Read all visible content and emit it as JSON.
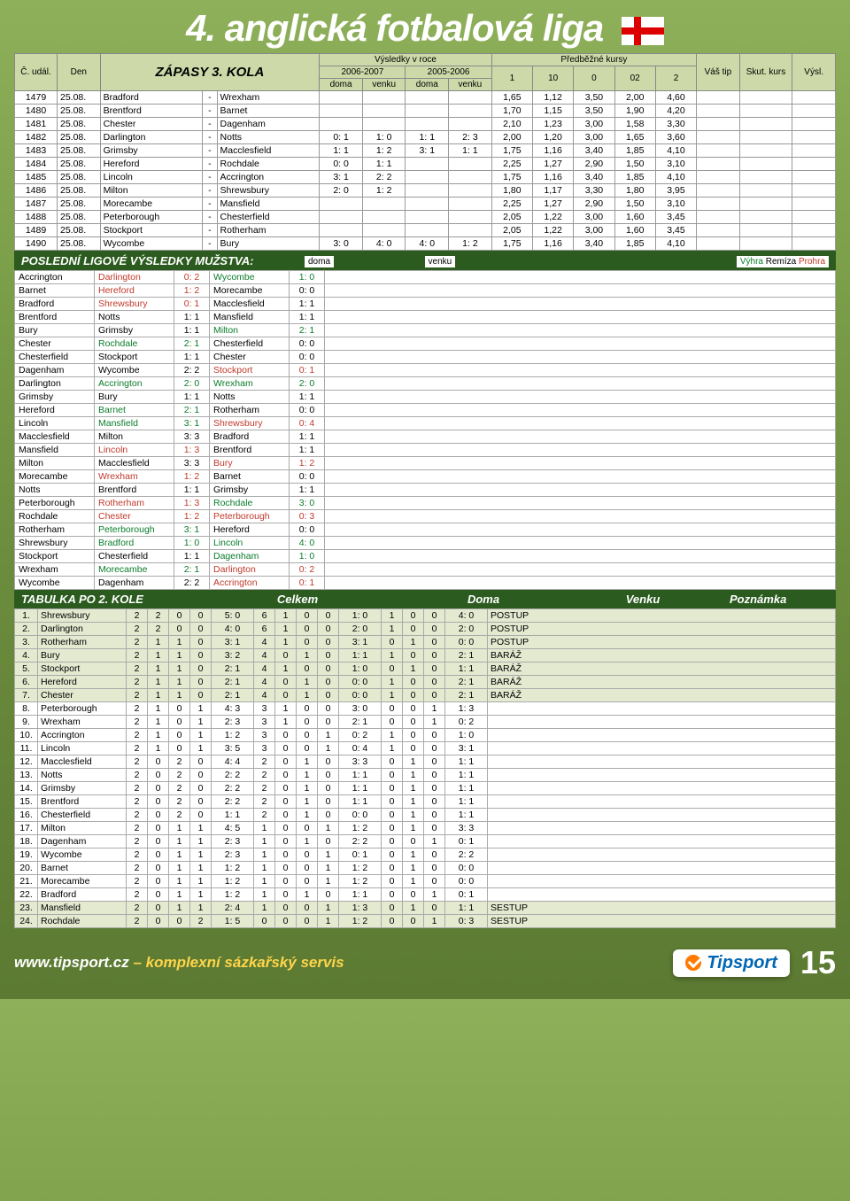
{
  "title": "4. anglická fotbalová liga",
  "matches_header": {
    "c": "Č. udál.",
    "den": "Den",
    "zapasy": "ZÁPASY 3. KOLA",
    "vysledky": "Výsledky v roce",
    "y1": "2006-2007",
    "y2": "2005-2006",
    "doma": "doma",
    "venku": "venku",
    "kursy": "Předběžné kursy",
    "k1": "1",
    "k10": "10",
    "k0": "0",
    "k02": "02",
    "k2": "2",
    "tip": "Váš tip",
    "skut": "Skut. kurs",
    "vysl": "Výsl."
  },
  "matches": [
    {
      "id": "1479",
      "d": "25.08.",
      "h": "Bradford",
      "a": "Wrexham",
      "r": [
        "",
        "",
        "",
        ""
      ],
      "o": [
        "1,65",
        "1,12",
        "3,50",
        "2,00",
        "4,60"
      ]
    },
    {
      "id": "1480",
      "d": "25.08.",
      "h": "Brentford",
      "a": "Barnet",
      "r": [
        "",
        "",
        "",
        ""
      ],
      "o": [
        "1,70",
        "1,15",
        "3,50",
        "1,90",
        "4,20"
      ]
    },
    {
      "id": "1481",
      "d": "25.08.",
      "h": "Chester",
      "a": "Dagenham",
      "r": [
        "",
        "",
        "",
        ""
      ],
      "o": [
        "2,10",
        "1,23",
        "3,00",
        "1,58",
        "3,30"
      ]
    },
    {
      "id": "1482",
      "d": "25.08.",
      "h": "Darlington",
      "a": "Notts",
      "r": [
        "0: 1",
        "1: 0",
        "1: 1",
        "2: 3"
      ],
      "o": [
        "2,00",
        "1,20",
        "3,00",
        "1,65",
        "3,60"
      ]
    },
    {
      "id": "1483",
      "d": "25.08.",
      "h": "Grimsby",
      "a": "Macclesfield",
      "r": [
        "1: 1",
        "1: 2",
        "3: 1",
        "1: 1"
      ],
      "o": [
        "1,75",
        "1,16",
        "3,40",
        "1,85",
        "4,10"
      ]
    },
    {
      "id": "1484",
      "d": "25.08.",
      "h": "Hereford",
      "a": "Rochdale",
      "r": [
        "0: 0",
        "1: 1",
        "",
        ""
      ],
      "o": [
        "2,25",
        "1,27",
        "2,90",
        "1,50",
        "3,10"
      ]
    },
    {
      "id": "1485",
      "d": "25.08.",
      "h": "Lincoln",
      "a": "Accrington",
      "r": [
        "3: 1",
        "2: 2",
        "",
        ""
      ],
      "o": [
        "1,75",
        "1,16",
        "3,40",
        "1,85",
        "4,10"
      ]
    },
    {
      "id": "1486",
      "d": "25.08.",
      "h": "Milton",
      "a": "Shrewsbury",
      "r": [
        "2: 0",
        "1: 2",
        "",
        ""
      ],
      "o": [
        "1,80",
        "1,17",
        "3,30",
        "1,80",
        "3,95"
      ]
    },
    {
      "id": "1487",
      "d": "25.08.",
      "h": "Morecambe",
      "a": "Mansfield",
      "r": [
        "",
        "",
        "",
        ""
      ],
      "o": [
        "2,25",
        "1,27",
        "2,90",
        "1,50",
        "3,10"
      ]
    },
    {
      "id": "1488",
      "d": "25.08.",
      "h": "Peterborough",
      "a": "Chesterfield",
      "r": [
        "",
        "",
        "",
        ""
      ],
      "o": [
        "2,05",
        "1,22",
        "3,00",
        "1,60",
        "3,45"
      ]
    },
    {
      "id": "1489",
      "d": "25.08.",
      "h": "Stockport",
      "a": "Rotherham",
      "r": [
        "",
        "",
        "",
        ""
      ],
      "o": [
        "2,05",
        "1,22",
        "3,00",
        "1,60",
        "3,45"
      ]
    },
    {
      "id": "1490",
      "d": "25.08.",
      "h": "Wycombe",
      "a": "Bury",
      "r": [
        "3: 0",
        "4: 0",
        "4: 0",
        "1: 2"
      ],
      "o": [
        "1,75",
        "1,16",
        "3,40",
        "1,85",
        "4,10"
      ]
    }
  ],
  "recent_title": "POSLEDNÍ LIGOVÉ VÝSLEDKY MUŽSTVA:",
  "legend": {
    "doma": "doma",
    "venku": "venku",
    "vyhra": "Výhra",
    "remiza": "Remíza",
    "prohra": "Prohra"
  },
  "recent": [
    {
      "t": "Accrington",
      "o": "Darlington",
      "oc": "red",
      "s": "0: 2",
      "t2": "Wycombe",
      "t2c": "green",
      "s2": "1: 0"
    },
    {
      "t": "Barnet",
      "o": "Hereford",
      "oc": "red",
      "s": "1: 2",
      "t2": "Morecambe",
      "t2c": "",
      "s2": "0: 0"
    },
    {
      "t": "Bradford",
      "o": "Shrewsbury",
      "oc": "red",
      "s": "0: 1",
      "t2": "Macclesfield",
      "t2c": "",
      "s2": "1: 1"
    },
    {
      "t": "Brentford",
      "o": "Notts",
      "oc": "",
      "s": "1: 1",
      "t2": "Mansfield",
      "t2c": "",
      "s2": "1: 1"
    },
    {
      "t": "Bury",
      "o": "Grimsby",
      "oc": "",
      "s": "1: 1",
      "t2": "Milton",
      "t2c": "green",
      "s2": "2: 1"
    },
    {
      "t": "Chester",
      "o": "Rochdale",
      "oc": "green",
      "s": "2: 1",
      "t2": "Chesterfield",
      "t2c": "",
      "s2": "0: 0"
    },
    {
      "t": "Chesterfield",
      "o": "Stockport",
      "oc": "",
      "s": "1: 1",
      "t2": "Chester",
      "t2c": "",
      "s2": "0: 0"
    },
    {
      "t": "Dagenham",
      "o": "Wycombe",
      "oc": "",
      "s": "2: 2",
      "t2": "Stockport",
      "t2c": "red",
      "s2": "0: 1"
    },
    {
      "t": "Darlington",
      "o": "Accrington",
      "oc": "green",
      "s": "2: 0",
      "t2": "Wrexham",
      "t2c": "green",
      "s2": "2: 0"
    },
    {
      "t": "Grimsby",
      "o": "Bury",
      "oc": "",
      "s": "1: 1",
      "t2": "Notts",
      "t2c": "",
      "s2": "1: 1"
    },
    {
      "t": "Hereford",
      "o": "Barnet",
      "oc": "green",
      "s": "2: 1",
      "t2": "Rotherham",
      "t2c": "",
      "s2": "0: 0"
    },
    {
      "t": "Lincoln",
      "o": "Mansfield",
      "oc": "green",
      "s": "3: 1",
      "t2": "Shrewsbury",
      "t2c": "red",
      "s2": "0: 4"
    },
    {
      "t": "Macclesfield",
      "o": "Milton",
      "oc": "",
      "s": "3: 3",
      "t2": "Bradford",
      "t2c": "",
      "s2": "1: 1"
    },
    {
      "t": "Mansfield",
      "o": "Lincoln",
      "oc": "red",
      "s": "1: 3",
      "t2": "Brentford",
      "t2c": "",
      "s2": "1: 1"
    },
    {
      "t": "Milton",
      "o": "Macclesfield",
      "oc": "",
      "s": "3: 3",
      "t2": "Bury",
      "t2c": "red",
      "s2": "1: 2"
    },
    {
      "t": "Morecambe",
      "o": "Wrexham",
      "oc": "red",
      "s": "1: 2",
      "t2": "Barnet",
      "t2c": "",
      "s2": "0: 0"
    },
    {
      "t": "Notts",
      "o": "Brentford",
      "oc": "",
      "s": "1: 1",
      "t2": "Grimsby",
      "t2c": "",
      "s2": "1: 1"
    },
    {
      "t": "Peterborough",
      "o": "Rotherham",
      "oc": "red",
      "s": "1: 3",
      "t2": "Rochdale",
      "t2c": "green",
      "s2": "3: 0"
    },
    {
      "t": "Rochdale",
      "o": "Chester",
      "oc": "red",
      "s": "1: 2",
      "t2": "Peterborough",
      "t2c": "red",
      "s2": "0: 3"
    },
    {
      "t": "Rotherham",
      "o": "Peterborough",
      "oc": "green",
      "s": "3: 1",
      "t2": "Hereford",
      "t2c": "",
      "s2": "0: 0"
    },
    {
      "t": "Shrewsbury",
      "o": "Bradford",
      "oc": "green",
      "s": "1: 0",
      "t2": "Lincoln",
      "t2c": "green",
      "s2": "4: 0"
    },
    {
      "t": "Stockport",
      "o": "Chesterfield",
      "oc": "",
      "s": "1: 1",
      "t2": "Dagenham",
      "t2c": "green",
      "s2": "1: 0"
    },
    {
      "t": "Wrexham",
      "o": "Morecambe",
      "oc": "green",
      "s": "2: 1",
      "t2": "Darlington",
      "t2c": "red",
      "s2": "0: 2"
    },
    {
      "t": "Wycombe",
      "o": "Dagenham",
      "oc": "",
      "s": "2: 2",
      "t2": "Accrington",
      "t2c": "red",
      "s2": "0: 1"
    }
  ],
  "standings_title": "TABULKA PO 2. KOLE",
  "standings_header": {
    "celkem": "Celkem",
    "doma": "Doma",
    "venku": "Venku",
    "pozn": "Poznámka"
  },
  "standings": [
    {
      "p": "1.",
      "t": "Shrewsbury",
      "c": [
        "2",
        "2",
        "0",
        "0",
        "5: 0",
        "6"
      ],
      "d": [
        "1",
        "0",
        "0",
        "1: 0"
      ],
      "v": [
        "1",
        "0",
        "0",
        "4: 0"
      ],
      "n": "POSTUP",
      "shade": true
    },
    {
      "p": "2.",
      "t": "Darlington",
      "c": [
        "2",
        "2",
        "0",
        "0",
        "4: 0",
        "6"
      ],
      "d": [
        "1",
        "0",
        "0",
        "2: 0"
      ],
      "v": [
        "1",
        "0",
        "0",
        "2: 0"
      ],
      "n": "POSTUP",
      "shade": true
    },
    {
      "p": "3.",
      "t": "Rotherham",
      "c": [
        "2",
        "1",
        "1",
        "0",
        "3: 1",
        "4"
      ],
      "d": [
        "1",
        "0",
        "0",
        "3: 1"
      ],
      "v": [
        "0",
        "1",
        "0",
        "0: 0"
      ],
      "n": "POSTUP",
      "shade": true
    },
    {
      "p": "4.",
      "t": "Bury",
      "c": [
        "2",
        "1",
        "1",
        "0",
        "3: 2",
        "4"
      ],
      "d": [
        "0",
        "1",
        "0",
        "1: 1"
      ],
      "v": [
        "1",
        "0",
        "0",
        "2: 1"
      ],
      "n": "BARÁŽ",
      "shade": true
    },
    {
      "p": "5.",
      "t": "Stockport",
      "c": [
        "2",
        "1",
        "1",
        "0",
        "2: 1",
        "4"
      ],
      "d": [
        "1",
        "0",
        "0",
        "1: 0"
      ],
      "v": [
        "0",
        "1",
        "0",
        "1: 1"
      ],
      "n": "BARÁŽ",
      "shade": true
    },
    {
      "p": "6.",
      "t": "Hereford",
      "c": [
        "2",
        "1",
        "1",
        "0",
        "2: 1",
        "4"
      ],
      "d": [
        "0",
        "1",
        "0",
        "0: 0"
      ],
      "v": [
        "1",
        "0",
        "0",
        "2: 1"
      ],
      "n": "BARÁŽ",
      "shade": true
    },
    {
      "p": "7.",
      "t": "Chester",
      "c": [
        "2",
        "1",
        "1",
        "0",
        "2: 1",
        "4"
      ],
      "d": [
        "0",
        "1",
        "0",
        "0: 0"
      ],
      "v": [
        "1",
        "0",
        "0",
        "2: 1"
      ],
      "n": "BARÁŽ",
      "shade": true
    },
    {
      "p": "8.",
      "t": "Peterborough",
      "c": [
        "2",
        "1",
        "0",
        "1",
        "4: 3",
        "3"
      ],
      "d": [
        "1",
        "0",
        "0",
        "3: 0"
      ],
      "v": [
        "0",
        "0",
        "1",
        "1: 3"
      ],
      "n": ""
    },
    {
      "p": "9.",
      "t": "Wrexham",
      "c": [
        "2",
        "1",
        "0",
        "1",
        "2: 3",
        "3"
      ],
      "d": [
        "1",
        "0",
        "0",
        "2: 1"
      ],
      "v": [
        "0",
        "0",
        "1",
        "0: 2"
      ],
      "n": ""
    },
    {
      "p": "10.",
      "t": "Accrington",
      "c": [
        "2",
        "1",
        "0",
        "1",
        "1: 2",
        "3"
      ],
      "d": [
        "0",
        "0",
        "1",
        "0: 2"
      ],
      "v": [
        "1",
        "0",
        "0",
        "1: 0"
      ],
      "n": ""
    },
    {
      "p": "11.",
      "t": "Lincoln",
      "c": [
        "2",
        "1",
        "0",
        "1",
        "3: 5",
        "3"
      ],
      "d": [
        "0",
        "0",
        "1",
        "0: 4"
      ],
      "v": [
        "1",
        "0",
        "0",
        "3: 1"
      ],
      "n": ""
    },
    {
      "p": "12.",
      "t": "Macclesfield",
      "c": [
        "2",
        "0",
        "2",
        "0",
        "4: 4",
        "2"
      ],
      "d": [
        "0",
        "1",
        "0",
        "3: 3"
      ],
      "v": [
        "0",
        "1",
        "0",
        "1: 1"
      ],
      "n": ""
    },
    {
      "p": "13.",
      "t": "Notts",
      "c": [
        "2",
        "0",
        "2",
        "0",
        "2: 2",
        "2"
      ],
      "d": [
        "0",
        "1",
        "0",
        "1: 1"
      ],
      "v": [
        "0",
        "1",
        "0",
        "1: 1"
      ],
      "n": ""
    },
    {
      "p": "14.",
      "t": "Grimsby",
      "c": [
        "2",
        "0",
        "2",
        "0",
        "2: 2",
        "2"
      ],
      "d": [
        "0",
        "1",
        "0",
        "1: 1"
      ],
      "v": [
        "0",
        "1",
        "0",
        "1: 1"
      ],
      "n": ""
    },
    {
      "p": "15.",
      "t": "Brentford",
      "c": [
        "2",
        "0",
        "2",
        "0",
        "2: 2",
        "2"
      ],
      "d": [
        "0",
        "1",
        "0",
        "1: 1"
      ],
      "v": [
        "0",
        "1",
        "0",
        "1: 1"
      ],
      "n": ""
    },
    {
      "p": "16.",
      "t": "Chesterfield",
      "c": [
        "2",
        "0",
        "2",
        "0",
        "1: 1",
        "2"
      ],
      "d": [
        "0",
        "1",
        "0",
        "0: 0"
      ],
      "v": [
        "0",
        "1",
        "0",
        "1: 1"
      ],
      "n": ""
    },
    {
      "p": "17.",
      "t": "Milton",
      "c": [
        "2",
        "0",
        "1",
        "1",
        "4: 5",
        "1"
      ],
      "d": [
        "0",
        "0",
        "1",
        "1: 2"
      ],
      "v": [
        "0",
        "1",
        "0",
        "3: 3"
      ],
      "n": ""
    },
    {
      "p": "18.",
      "t": "Dagenham",
      "c": [
        "2",
        "0",
        "1",
        "1",
        "2: 3",
        "1"
      ],
      "d": [
        "0",
        "1",
        "0",
        "2: 2"
      ],
      "v": [
        "0",
        "0",
        "1",
        "0: 1"
      ],
      "n": ""
    },
    {
      "p": "19.",
      "t": "Wycombe",
      "c": [
        "2",
        "0",
        "1",
        "1",
        "2: 3",
        "1"
      ],
      "d": [
        "0",
        "0",
        "1",
        "0: 1"
      ],
      "v": [
        "0",
        "1",
        "0",
        "2: 2"
      ],
      "n": ""
    },
    {
      "p": "20.",
      "t": "Barnet",
      "c": [
        "2",
        "0",
        "1",
        "1",
        "1: 2",
        "1"
      ],
      "d": [
        "0",
        "0",
        "1",
        "1: 2"
      ],
      "v": [
        "0",
        "1",
        "0",
        "0: 0"
      ],
      "n": ""
    },
    {
      "p": "21.",
      "t": "Morecambe",
      "c": [
        "2",
        "0",
        "1",
        "1",
        "1: 2",
        "1"
      ],
      "d": [
        "0",
        "0",
        "1",
        "1: 2"
      ],
      "v": [
        "0",
        "1",
        "0",
        "0: 0"
      ],
      "n": ""
    },
    {
      "p": "22.",
      "t": "Bradford",
      "c": [
        "2",
        "0",
        "1",
        "1",
        "1: 2",
        "1"
      ],
      "d": [
        "0",
        "1",
        "0",
        "1: 1"
      ],
      "v": [
        "0",
        "0",
        "1",
        "0: 1"
      ],
      "n": ""
    },
    {
      "p": "23.",
      "t": "Mansfield",
      "c": [
        "2",
        "0",
        "1",
        "1",
        "2: 4",
        "1"
      ],
      "d": [
        "0",
        "0",
        "1",
        "1: 3"
      ],
      "v": [
        "0",
        "1",
        "0",
        "1: 1"
      ],
      "n": "SESTUP",
      "shade": true
    },
    {
      "p": "24.",
      "t": "Rochdale",
      "c": [
        "2",
        "0",
        "0",
        "2",
        "1: 5",
        "0"
      ],
      "d": [
        "0",
        "0",
        "1",
        "1: 2"
      ],
      "v": [
        "0",
        "0",
        "1",
        "0: 3"
      ],
      "n": "SESTUP",
      "shade": true
    }
  ],
  "footer": {
    "url": "www.tipsport.cz",
    "sub": " – komplexní sázkařský servis",
    "brand": "Tipsport",
    "page": "15"
  }
}
